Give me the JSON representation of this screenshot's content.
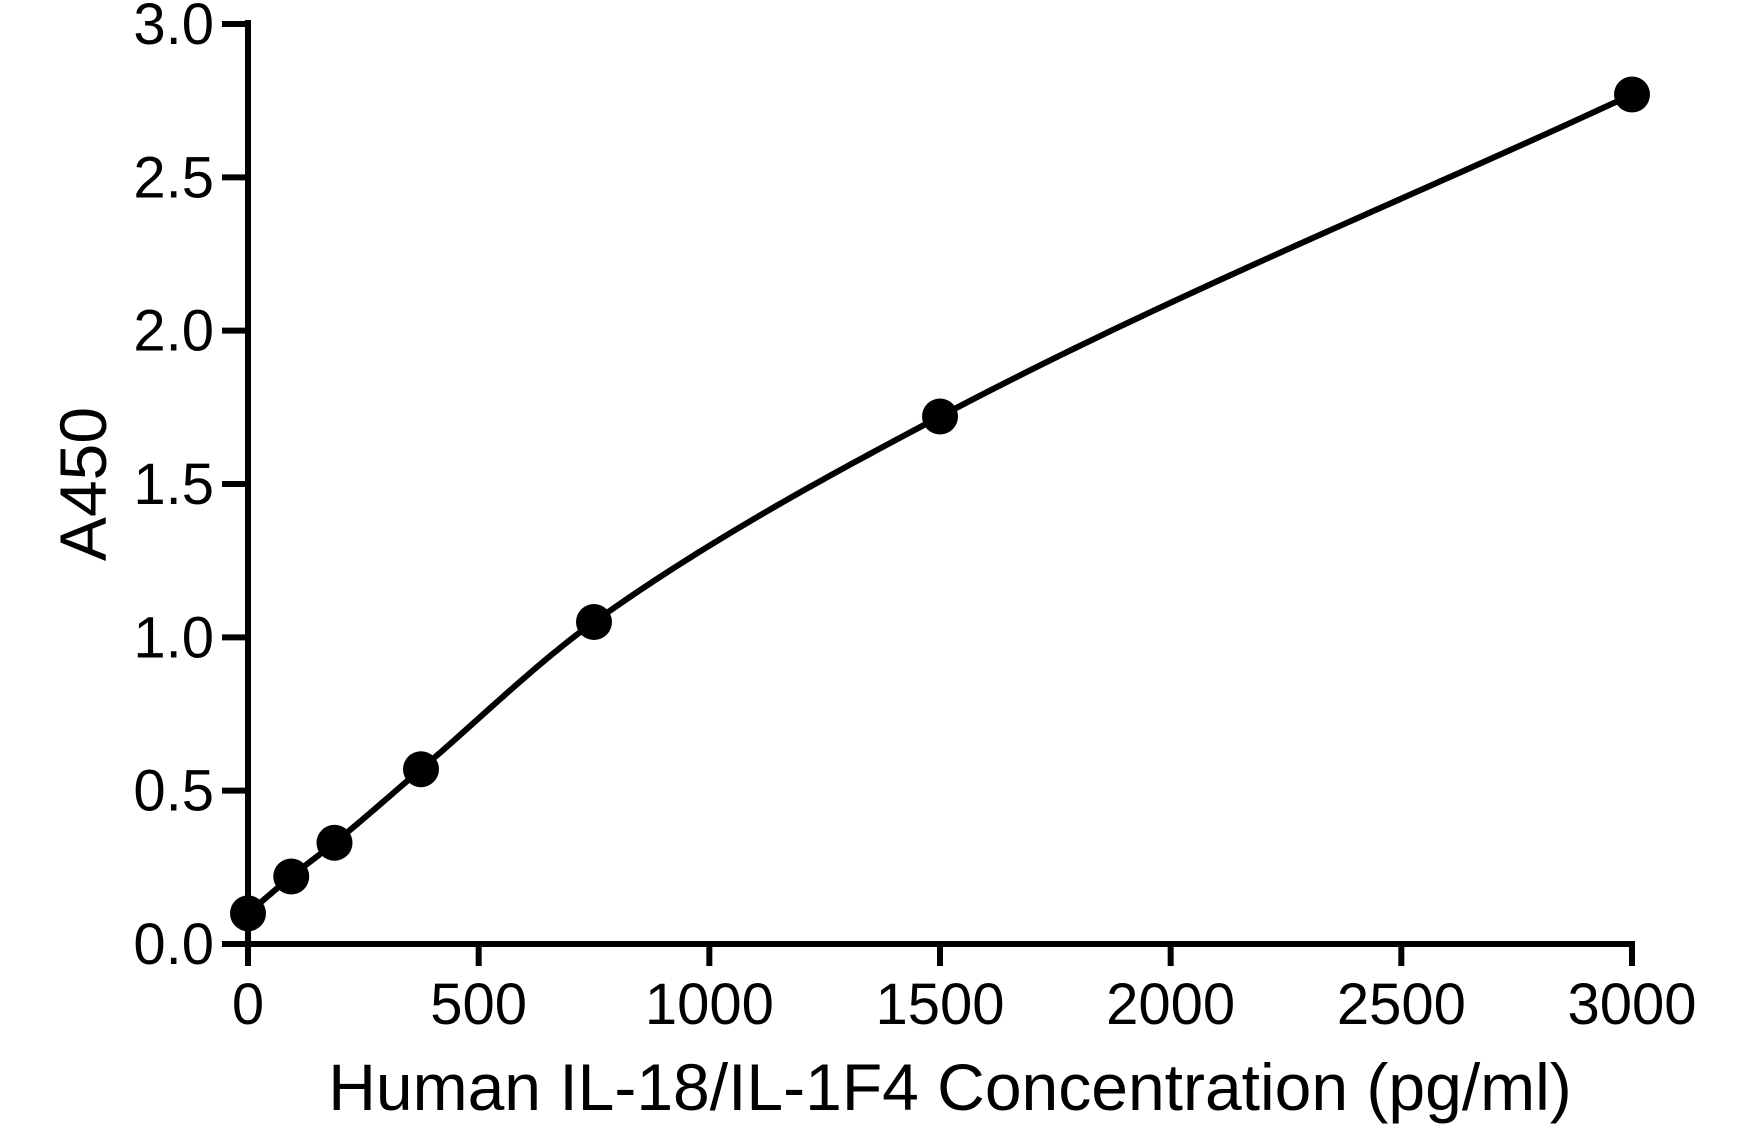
{
  "chart_data": {
    "type": "line",
    "title": "",
    "xlabel": "Human IL-18/IL-1F4 Concentration (pg/ml)",
    "ylabel": "A450",
    "xlim": [
      0,
      3000
    ],
    "ylim": [
      0,
      3.0
    ],
    "xticks": [
      0,
      500,
      1000,
      1500,
      2000,
      2500,
      3000
    ],
    "xtick_labels": [
      "0",
      "500",
      "1000",
      "1500",
      "2000",
      "2500",
      "3000"
    ],
    "yticks": [
      0,
      0.5,
      1.0,
      1.5,
      2.0,
      2.5,
      3.0
    ],
    "ytick_labels": [
      "0.0",
      "0.5",
      "1.0",
      "1.5",
      "2.0",
      "2.5",
      "3.0"
    ],
    "grid": false,
    "legend": "none",
    "series": [
      {
        "x": [
          0,
          93.75,
          187.5,
          375,
          750,
          1500,
          3000
        ],
        "y": [
          0.1,
          0.22,
          0.33,
          0.57,
          1.05,
          1.72,
          2.77
        ],
        "marker": "circle",
        "fit_curve": true
      }
    ],
    "colors": {
      "line": "#000000",
      "marker": "#000000",
      "axis": "#000000"
    }
  }
}
